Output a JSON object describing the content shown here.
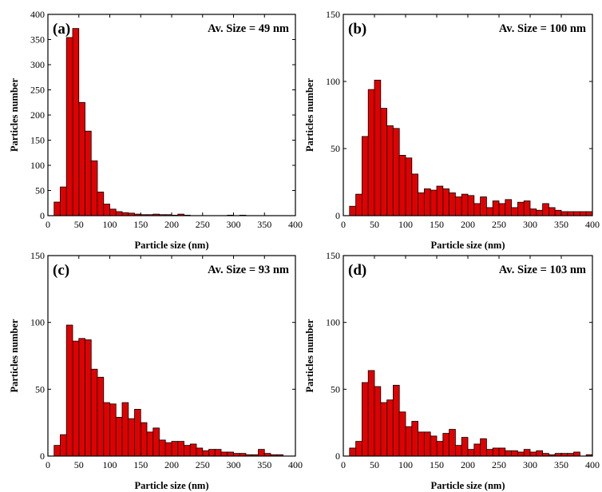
{
  "chart_data": [
    {
      "type": "bar",
      "panel_label": "(a)",
      "annotation": "Av. Size = 49 nm",
      "xlabel": "Particle size (nm)",
      "ylabel": "Particles number",
      "xlim": [
        0,
        400
      ],
      "ylim": [
        0,
        400
      ],
      "xticks": [
        0,
        50,
        100,
        150,
        200,
        250,
        300,
        350,
        400
      ],
      "yticks": [
        0,
        50,
        100,
        150,
        200,
        250,
        300,
        350,
        400
      ],
      "bin_width": 10,
      "bin_starts": [
        10,
        20,
        30,
        40,
        50,
        60,
        70,
        80,
        90,
        100,
        110,
        120,
        130,
        140,
        150,
        160,
        170,
        180,
        190,
        200,
        210,
        220,
        290,
        310
      ],
      "values": [
        27,
        57,
        354,
        372,
        225,
        168,
        109,
        47,
        23,
        13,
        8,
        6,
        5,
        3,
        2,
        2,
        3,
        2,
        2,
        1,
        3,
        1,
        1,
        1
      ],
      "grid": false,
      "legend": "none"
    },
    {
      "type": "bar",
      "panel_label": "(b)",
      "annotation": "Av. Size = 100 nm",
      "xlabel": "Particle size (nm)",
      "ylabel": "Particles number",
      "xlim": [
        0,
        400
      ],
      "ylim": [
        0,
        150
      ],
      "xticks": [
        0,
        50,
        100,
        150,
        200,
        250,
        300,
        350,
        400
      ],
      "yticks": [
        0,
        50,
        100,
        150
      ],
      "bin_width": 10,
      "bin_starts": [
        10,
        20,
        30,
        40,
        50,
        60,
        70,
        80,
        90,
        100,
        110,
        120,
        130,
        140,
        150,
        160,
        170,
        180,
        190,
        200,
        210,
        220,
        230,
        240,
        250,
        260,
        270,
        280,
        290,
        300,
        310,
        320,
        330,
        340,
        350,
        360,
        370,
        380,
        390
      ],
      "values": [
        7,
        16,
        59,
        94,
        101,
        80,
        67,
        65,
        45,
        43,
        31,
        17,
        20,
        19,
        22,
        20,
        17,
        14,
        16,
        15,
        9,
        14,
        6,
        11,
        9,
        12,
        6,
        10,
        11,
        5,
        4,
        9,
        6,
        4,
        3,
        3,
        3,
        3,
        3
      ],
      "grid": false,
      "legend": "none"
    },
    {
      "type": "bar",
      "panel_label": "(c)",
      "annotation": "Av. Size = 93 nm",
      "xlabel": "Particle size (nm)",
      "ylabel": "Particles number",
      "xlim": [
        0,
        400
      ],
      "ylim": [
        0,
        150
      ],
      "xticks": [
        0,
        50,
        100,
        150,
        200,
        250,
        300,
        350,
        400
      ],
      "yticks": [
        0,
        50,
        100,
        150
      ],
      "bin_width": 10,
      "bin_starts": [
        10,
        20,
        30,
        40,
        50,
        60,
        70,
        80,
        90,
        100,
        110,
        120,
        130,
        140,
        150,
        160,
        170,
        180,
        190,
        200,
        210,
        220,
        230,
        240,
        250,
        260,
        270,
        280,
        290,
        300,
        310,
        320,
        330,
        340,
        350,
        360,
        370
      ],
      "values": [
        8,
        16,
        98,
        86,
        88,
        87,
        65,
        59,
        40,
        39,
        29,
        40,
        28,
        35,
        25,
        18,
        21,
        12,
        10,
        11,
        11,
        8,
        9,
        6,
        4,
        5,
        5,
        3,
        3,
        2,
        2,
        1,
        1,
        5,
        2,
        1,
        1
      ],
      "grid": false,
      "legend": "none"
    },
    {
      "type": "bar",
      "panel_label": "(d)",
      "annotation": "Av. Size = 103 nm",
      "xlabel": "Particle size (nm)",
      "ylabel": "Particles number",
      "xlim": [
        0,
        400
      ],
      "ylim": [
        0,
        150
      ],
      "xticks": [
        0,
        50,
        100,
        150,
        200,
        250,
        300,
        350,
        400
      ],
      "yticks": [
        0,
        50,
        100,
        150
      ],
      "bin_width": 10,
      "bin_starts": [
        10,
        20,
        30,
        40,
        50,
        60,
        70,
        80,
        90,
        100,
        110,
        120,
        130,
        140,
        150,
        160,
        170,
        180,
        190,
        200,
        210,
        220,
        230,
        240,
        250,
        260,
        270,
        280,
        290,
        300,
        310,
        320,
        330,
        340,
        350,
        360,
        370,
        390
      ],
      "values": [
        6,
        11,
        55,
        64,
        52,
        40,
        42,
        53,
        33,
        22,
        26,
        18,
        18,
        15,
        11,
        17,
        20,
        8,
        14,
        5,
        9,
        13,
        5,
        6,
        6,
        4,
        4,
        3,
        5,
        3,
        4,
        2,
        1,
        2,
        2,
        2,
        3,
        1
      ],
      "grid": false,
      "legend": "none"
    }
  ]
}
